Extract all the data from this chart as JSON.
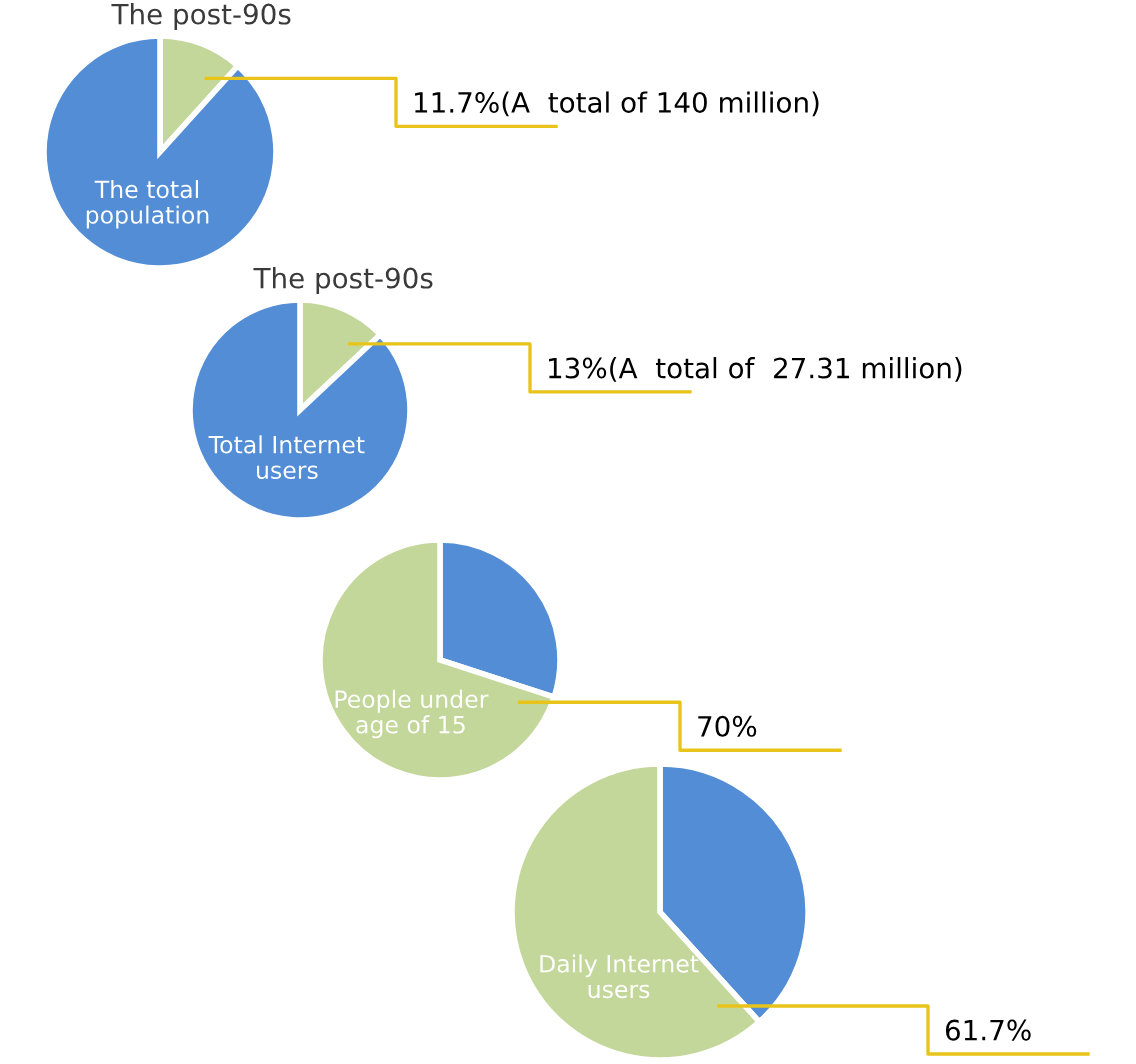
{
  "chart_data": [
    {
      "type": "pie",
      "categories": [
        "The post-90s",
        "The total population"
      ],
      "values": [
        11.7,
        88.3
      ],
      "colors": [
        "#c4d79b",
        "#538dd5"
      ],
      "value_labels": [
        "11.7%(A  total of 140 million)",
        null
      ]
    },
    {
      "type": "pie",
      "categories": [
        "The post-90s",
        "Total Internet users"
      ],
      "values": [
        13,
        87
      ],
      "colors": [
        "#c4d79b",
        "#538dd5"
      ],
      "value_labels": [
        "13%(A  total of  27.31 million)",
        null
      ]
    },
    {
      "type": "pie",
      "categories": [
        null,
        "People under age of 15"
      ],
      "values": [
        30,
        70
      ],
      "colors": [
        "#538dd5",
        "#c4d79b"
      ],
      "value_labels": [
        null,
        "70%"
      ]
    },
    {
      "type": "pie",
      "categories": [
        null,
        "Daily Internet users"
      ],
      "values": [
        38.3,
        61.7
      ],
      "colors": [
        "#538dd5",
        "#c4d79b"
      ],
      "value_labels": [
        null,
        "61.7%"
      ]
    }
  ]
}
